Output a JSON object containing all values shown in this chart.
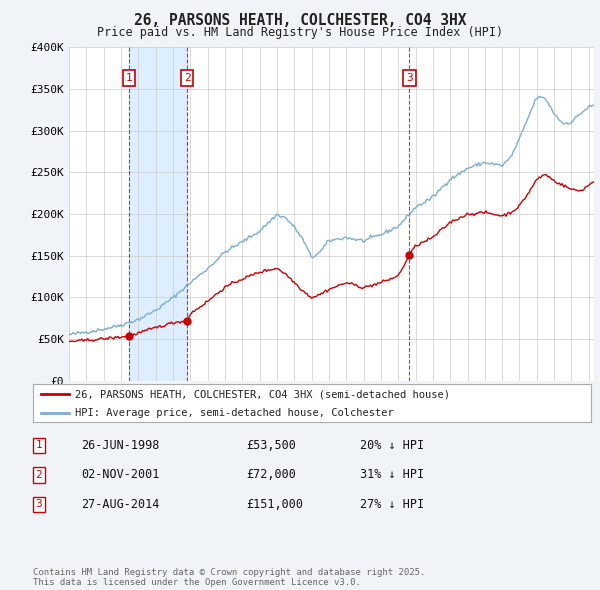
{
  "title": "26, PARSONS HEATH, COLCHESTER, CO4 3HX",
  "subtitle": "Price paid vs. HM Land Registry's House Price Index (HPI)",
  "ylim": [
    0,
    400000
  ],
  "yticks": [
    0,
    50000,
    100000,
    150000,
    200000,
    250000,
    300000,
    350000,
    400000
  ],
  "ytick_labels": [
    "£0",
    "£50K",
    "£100K",
    "£150K",
    "£200K",
    "£250K",
    "£300K",
    "£350K",
    "£400K"
  ],
  "bg_color": "#f0f4f8",
  "plot_bg_color": "#ffffff",
  "red_color": "#cc0000",
  "blue_color": "#7aaed6",
  "vline_color": "#cc0000",
  "shade_color": "#ddeeff",
  "grid_color": "#cccccc",
  "legend_label_red": "26, PARSONS HEATH, COLCHESTER, CO4 3HX (semi-detached house)",
  "legend_label_blue": "HPI: Average price, semi-detached house, Colchester",
  "transactions": [
    {
      "num": 1,
      "date": "26-JUN-1998",
      "price": "£53,500",
      "pct": "20% ↓ HPI",
      "x": 1998.48
    },
    {
      "num": 2,
      "date": "02-NOV-2001",
      "price": "£72,000",
      "pct": "31% ↓ HPI",
      "x": 2001.83
    },
    {
      "num": 3,
      "date": "27-AUG-2014",
      "price": "£151,000",
      "pct": "27% ↓ HPI",
      "x": 2014.65
    }
  ],
  "footnote": "Contains HM Land Registry data © Crown copyright and database right 2025.\nThis data is licensed under the Open Government Licence v3.0.",
  "xmin": 1995.0,
  "xmax": 2025.3
}
